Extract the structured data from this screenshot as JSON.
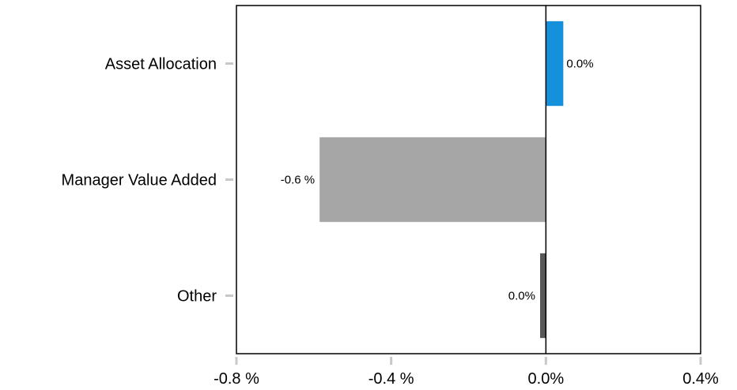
{
  "chart_data": {
    "type": "bar",
    "orientation": "horizontal",
    "categories": [
      "Asset Allocation",
      "Manager Value Added",
      "Other"
    ],
    "values": [
      0.045,
      -0.585,
      -0.015
    ],
    "data_labels": [
      "0.0%",
      "-0.6 %",
      "0.0%"
    ],
    "colors": [
      "#1591dc",
      "#a6a6a6",
      "#595959"
    ],
    "xlim": [
      -0.8,
      0.4
    ],
    "x_ticks": [
      -0.8,
      -0.4,
      0.0,
      0.4
    ],
    "x_tick_labels": [
      "-0.8 %",
      "-0.4 %",
      "0.0%",
      "0.4%"
    ],
    "title": "",
    "xlabel": "",
    "ylabel": "",
    "grid": false,
    "legend": "none"
  }
}
